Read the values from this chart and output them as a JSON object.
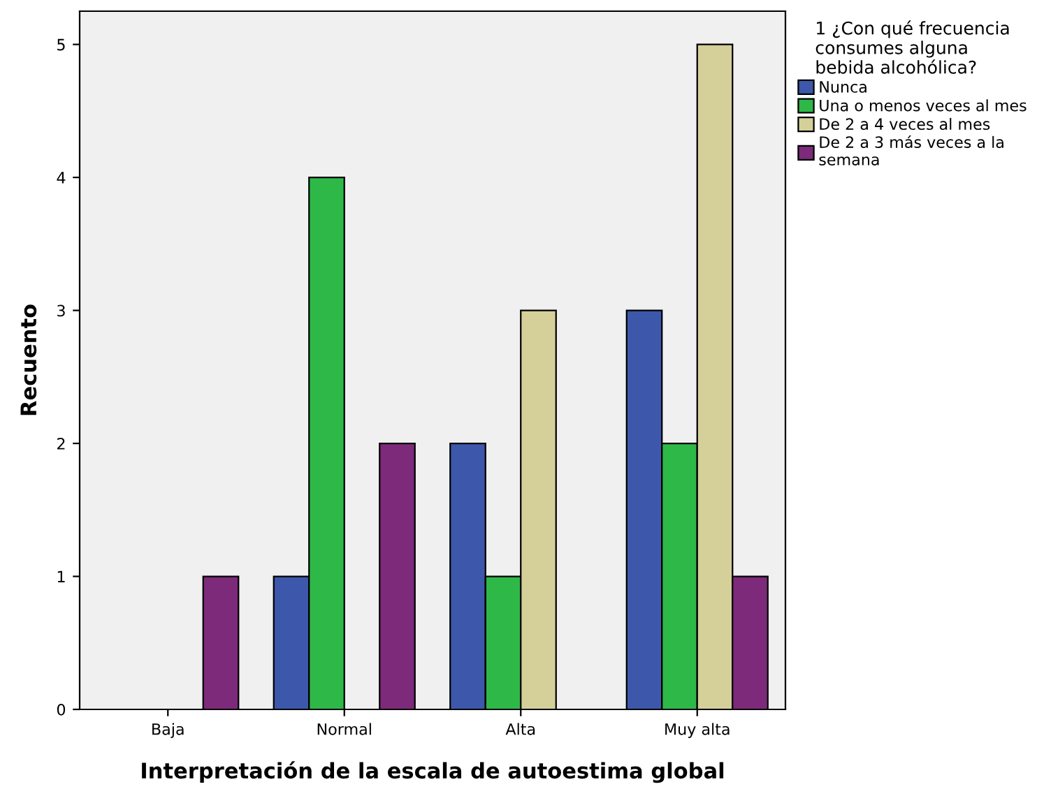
{
  "chart_data": {
    "type": "bar",
    "xlabel": "Interpretación de la escala de autoestima global",
    "ylabel": "Recuento",
    "legend_title": "1 ¿Con qué frecuencia\nconsumes alguna\nbebida alcohólica?",
    "categories": [
      "Baja",
      "Normal",
      "Alta",
      "Muy alta"
    ],
    "series": [
      {
        "name": "Nunca",
        "color": "#3d58ab",
        "values": [
          null,
          1,
          2,
          3
        ]
      },
      {
        "name": "Una o menos veces al mes",
        "color": "#2eb848",
        "values": [
          null,
          4,
          1,
          2
        ]
      },
      {
        "name": "De 2 a 4 veces al mes",
        "color": "#d5d09a",
        "values": [
          null,
          null,
          3,
          5
        ]
      },
      {
        "name": "De 2 a 3 más veces a la\nsemana",
        "color": "#7d2a7b",
        "values": [
          1,
          2,
          null,
          1
        ]
      }
    ],
    "ylim": [
      0,
      5.25
    ],
    "yticks": [
      0,
      1,
      2,
      3,
      4,
      5
    ],
    "grid": false,
    "legend": "right"
  }
}
